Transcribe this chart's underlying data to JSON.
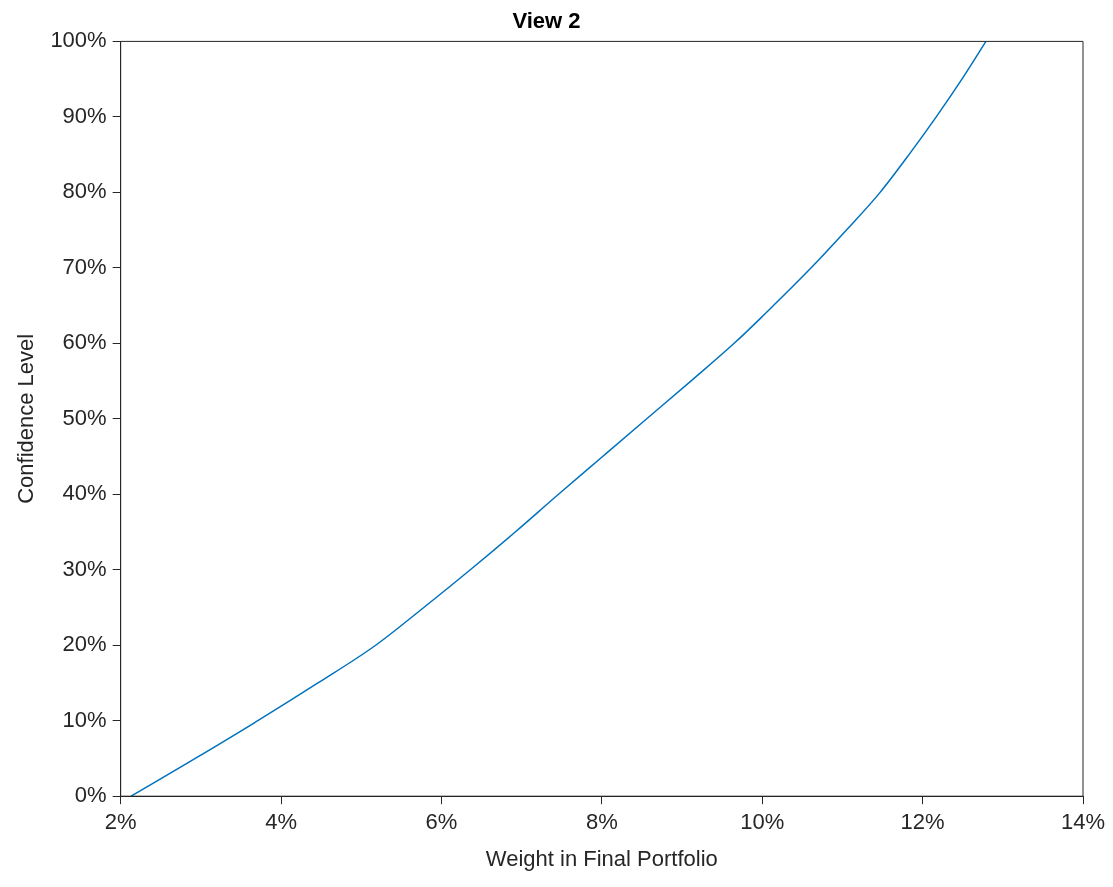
{
  "chart_data": {
    "type": "line",
    "title": "View 2",
    "xlabel": "Weight in Final Portfolio",
    "ylabel": "Confidence Level",
    "xlim": [
      2,
      14
    ],
    "ylim": [
      0,
      100
    ],
    "xticks": [
      {
        "value": 2,
        "label": "2%"
      },
      {
        "value": 4,
        "label": "4%"
      },
      {
        "value": 6,
        "label": "6%"
      },
      {
        "value": 8,
        "label": "8%"
      },
      {
        "value": 10,
        "label": "10%"
      },
      {
        "value": 12,
        "label": "12%"
      },
      {
        "value": 14,
        "label": "14%"
      }
    ],
    "yticks": [
      {
        "value": 0,
        "label": "0%"
      },
      {
        "value": 10,
        "label": "10%"
      },
      {
        "value": 20,
        "label": "20%"
      },
      {
        "value": 30,
        "label": "30%"
      },
      {
        "value": 40,
        "label": "40%"
      },
      {
        "value": 50,
        "label": "50%"
      },
      {
        "value": 60,
        "label": "60%"
      },
      {
        "value": 70,
        "label": "70%"
      },
      {
        "value": 80,
        "label": "80%"
      },
      {
        "value": 90,
        "label": "90%"
      },
      {
        "value": 100,
        "label": "100%"
      }
    ],
    "grid": false,
    "legend": false,
    "marker": "none",
    "line_style": "solid",
    "x": [
      2.13,
      2.93,
      3.71,
      4.46,
      5.18,
      5.78,
      6.36,
      6.92,
      7.46,
      8.01,
      8.56,
      9.11,
      9.65,
      10.14,
      10.61,
      11.05,
      11.47,
      11.83,
      12.17,
      12.49,
      12.79
    ],
    "series": [
      {
        "color": "#0072bd",
        "values": [
          0,
          5,
          10,
          15,
          20,
          25,
          30,
          35,
          40,
          45,
          50,
          55,
          60,
          65,
          70,
          75,
          80,
          85,
          90,
          95,
          100
        ]
      }
    ]
  }
}
